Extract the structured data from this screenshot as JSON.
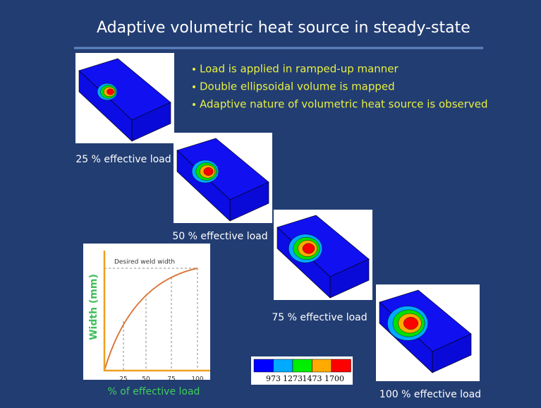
{
  "title": "Adaptive volumetric heat source in steady-state",
  "bullets": [
    "Load is applied in ramped-up manner",
    "Double ellipsoidal volume is mapped",
    "Adaptive nature of volumetric heat source is observed"
  ],
  "panels": [
    {
      "caption": "25 % effective load"
    },
    {
      "caption": "50 % effective load"
    },
    {
      "caption": "75 % effective load"
    },
    {
      "caption": "100 % effective load"
    }
  ],
  "plot": {
    "y_label": "Width (mm)",
    "x_label": "% of effective load",
    "annotation": "Desired weld width",
    "x_ticks": [
      "25",
      "50",
      "75",
      "100"
    ]
  },
  "colorbar": {
    "labels": [
      "973",
      "1273",
      "1473",
      "1700"
    ]
  }
}
